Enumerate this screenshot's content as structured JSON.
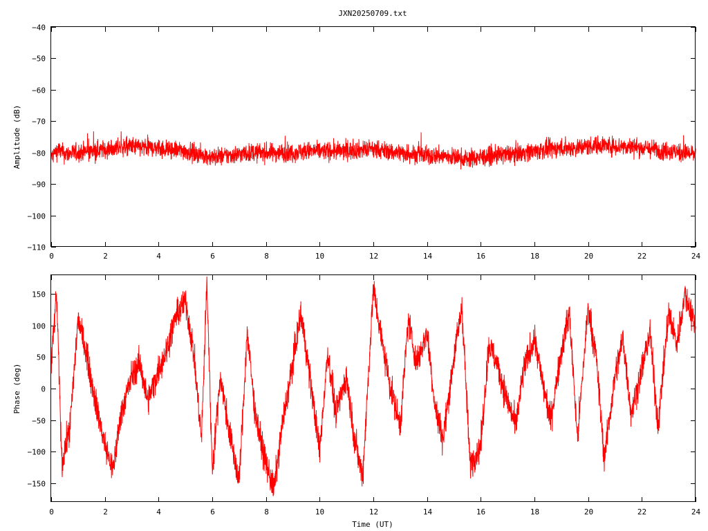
{
  "figure": {
    "title": "JXN20250709.txt",
    "color": "#ff0000"
  },
  "chart_data": [
    {
      "type": "line",
      "title": "JXN20250709.txt",
      "xlabel": "",
      "ylabel": "Amplitude (dB)",
      "xlim": [
        0,
        24
      ],
      "ylim": [
        -110,
        -40
      ],
      "x_ticks": [
        "0",
        "2",
        "4",
        "6",
        "8",
        "10",
        "12",
        "14",
        "16",
        "18",
        "20",
        "22",
        "24"
      ],
      "y_ticks": [
        "-40",
        "-50",
        "-60",
        "-70",
        "-80",
        "-90",
        "-100",
        "-110"
      ],
      "grid": false,
      "series": [
        {
          "color": "#ff0000",
          "x": [
            0,
            0.25,
            0.5,
            1,
            1.5,
            2,
            2.5,
            3,
            3.5,
            4,
            4.5,
            5,
            5.5,
            6,
            6.5,
            7,
            7.5,
            8,
            8.5,
            9,
            9.5,
            10,
            10.5,
            11,
            11.5,
            12,
            12.5,
            13,
            13.5,
            14,
            14.5,
            15,
            15.5,
            16,
            16.5,
            17,
            17.5,
            18,
            18.5,
            19,
            19.5,
            20,
            20.5,
            21,
            21.5,
            22,
            22.5,
            23,
            23.5,
            24
          ],
          "y": [
            -81.5,
            -79,
            -80.5,
            -80,
            -79.5,
            -79,
            -78.5,
            -78,
            -78.5,
            -78.5,
            -79,
            -79.5,
            -80.5,
            -81.5,
            -81,
            -80.5,
            -80,
            -80,
            -80,
            -80,
            -79.5,
            -79.5,
            -79.5,
            -79.5,
            -79,
            -79,
            -79.5,
            -80,
            -80.5,
            -81,
            -81,
            -81.5,
            -82,
            -81.5,
            -81,
            -80.5,
            -80,
            -79.5,
            -79,
            -78.5,
            -78.5,
            -78,
            -77.5,
            -78,
            -78,
            -78.5,
            -79,
            -79.5,
            -80,
            -80.5
          ],
          "noise_db": 2.8
        }
      ]
    },
    {
      "type": "line",
      "title": "",
      "xlabel": "Time (UT)",
      "ylabel": "Phase (deg)",
      "xlim": [
        0,
        24
      ],
      "ylim": [
        -180,
        180
      ],
      "x_ticks": [
        "0",
        "2",
        "4",
        "6",
        "8",
        "10",
        "12",
        "14",
        "16",
        "18",
        "20",
        "22",
        "24"
      ],
      "y_ticks": [
        "150",
        "100",
        "50",
        "0",
        "-50",
        "-100",
        "-150"
      ],
      "grid": false,
      "series": [
        {
          "color": "#ff0000",
          "x": [
            0,
            0.2,
            0.4,
            0.7,
            1,
            1.3,
            1.6,
            2,
            2.3,
            2.6,
            3,
            3.3,
            3.6,
            4,
            4.3,
            4.6,
            5,
            5.3,
            5.6,
            5.8,
            6,
            6.3,
            6.6,
            7,
            7.3,
            7.6,
            8,
            8.3,
            8.6,
            9,
            9.3,
            9.6,
            10,
            10.3,
            10.6,
            11,
            11.3,
            11.6,
            12,
            12.3,
            12.6,
            13,
            13.3,
            13.6,
            14,
            14.3,
            14.6,
            15,
            15.3,
            15.6,
            16,
            16.3,
            16.6,
            17,
            17.3,
            17.6,
            18,
            18.3,
            18.6,
            19,
            19.3,
            19.6,
            20,
            20.3,
            20.6,
            21,
            21.3,
            21.6,
            22,
            22.3,
            22.6,
            23,
            23.3,
            23.6,
            24
          ],
          "y": [
            40,
            150,
            -120,
            -60,
            110,
            60,
            -10,
            -90,
            -130,
            -40,
            20,
            40,
            -20,
            30,
            60,
            110,
            140,
            60,
            -80,
            170,
            -130,
            20,
            -60,
            -150,
            90,
            -40,
            -120,
            -160,
            -60,
            40,
            120,
            30,
            -100,
            60,
            -40,
            20,
            -80,
            -140,
            160,
            80,
            10,
            -60,
            110,
            40,
            90,
            -30,
            -80,
            50,
            130,
            -120,
            -90,
            70,
            40,
            -20,
            -60,
            30,
            80,
            10,
            -50,
            60,
            120,
            -80,
            130,
            50,
            -110,
            20,
            80,
            -40,
            30,
            90,
            -60,
            120,
            70,
            150,
            100
          ],
          "noise_deg": 22
        }
      ]
    }
  ]
}
